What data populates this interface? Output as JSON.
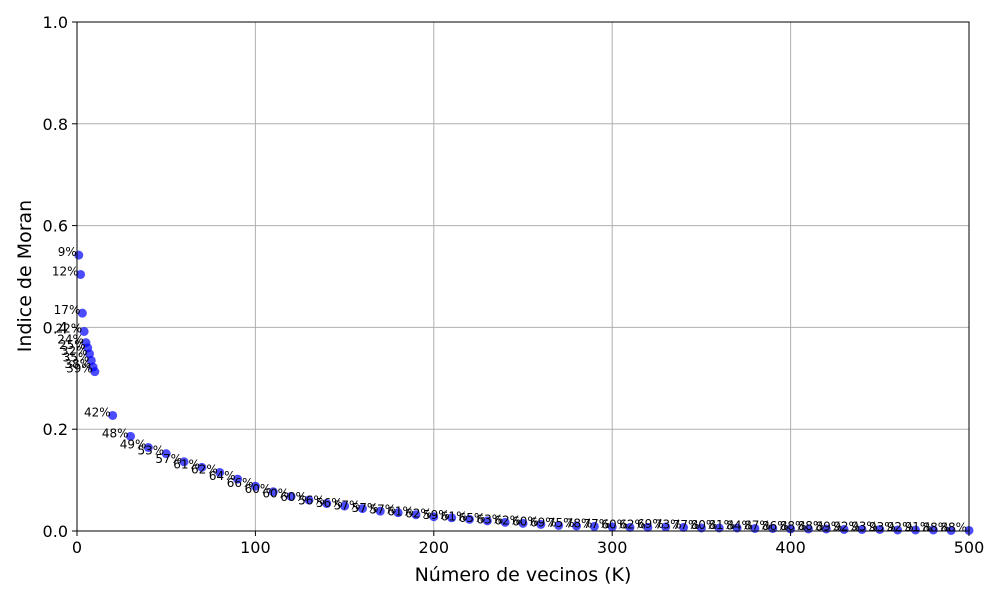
{
  "chart_data": {
    "type": "scatter",
    "xlabel": "Número de vecinos (K)",
    "ylabel": "Indice de Moran",
    "xlim": [
      0,
      500
    ],
    "ylim": [
      0,
      1
    ],
    "xticks": [
      0,
      100,
      200,
      300,
      400,
      500
    ],
    "yticks": [
      0.0,
      0.2,
      0.4,
      0.6,
      0.8,
      1.0
    ],
    "grid": true,
    "colors": {
      "point": "#0000ff"
    },
    "points": [
      {
        "x": 1,
        "y": 0.542,
        "label": "9%"
      },
      {
        "x": 2,
        "y": 0.504,
        "label": "12%"
      },
      {
        "x": 3,
        "y": 0.428,
        "label": "17%"
      },
      {
        "x": 4,
        "y": 0.392,
        "label": "22%"
      },
      {
        "x": 5,
        "y": 0.37,
        "label": "24%"
      },
      {
        "x": 6,
        "y": 0.36,
        "label": "25%"
      },
      {
        "x": 7,
        "y": 0.348,
        "label": "32%"
      },
      {
        "x": 8,
        "y": 0.335,
        "label": "35%"
      },
      {
        "x": 9,
        "y": 0.322,
        "label": "38%"
      },
      {
        "x": 10,
        "y": 0.313,
        "label": "39%"
      },
      {
        "x": 20,
        "y": 0.227,
        "label": "42%"
      },
      {
        "x": 30,
        "y": 0.186,
        "label": "48%"
      },
      {
        "x": 40,
        "y": 0.164,
        "label": "49%"
      },
      {
        "x": 50,
        "y": 0.152,
        "label": "53%"
      },
      {
        "x": 60,
        "y": 0.136,
        "label": "57%"
      },
      {
        "x": 70,
        "y": 0.125,
        "label": "61%"
      },
      {
        "x": 80,
        "y": 0.115,
        "label": "62%"
      },
      {
        "x": 90,
        "y": 0.102,
        "label": "64%"
      },
      {
        "x": 100,
        "y": 0.088,
        "label": "66%"
      },
      {
        "x": 110,
        "y": 0.077,
        "label": "60%"
      },
      {
        "x": 120,
        "y": 0.068,
        "label": "60%"
      },
      {
        "x": 130,
        "y": 0.061,
        "label": "60%"
      },
      {
        "x": 140,
        "y": 0.054,
        "label": "56%"
      },
      {
        "x": 150,
        "y": 0.049,
        "label": "56%"
      },
      {
        "x": 160,
        "y": 0.044,
        "label": "57%"
      },
      {
        "x": 170,
        "y": 0.039,
        "label": "57%"
      },
      {
        "x": 180,
        "y": 0.036,
        "label": "57%"
      },
      {
        "x": 190,
        "y": 0.032,
        "label": "61%"
      },
      {
        "x": 200,
        "y": 0.028,
        "label": "62%"
      },
      {
        "x": 210,
        "y": 0.026,
        "label": "59%"
      },
      {
        "x": 220,
        "y": 0.023,
        "label": "61%"
      },
      {
        "x": 230,
        "y": 0.02,
        "label": "65%"
      },
      {
        "x": 240,
        "y": 0.017,
        "label": "63%"
      },
      {
        "x": 250,
        "y": 0.015,
        "label": "62%"
      },
      {
        "x": 260,
        "y": 0.013,
        "label": "60%"
      },
      {
        "x": 270,
        "y": 0.011,
        "label": "69%"
      },
      {
        "x": 280,
        "y": 0.01,
        "label": "75%"
      },
      {
        "x": 290,
        "y": 0.009,
        "label": "78%"
      },
      {
        "x": 300,
        "y": 0.008,
        "label": "77%"
      },
      {
        "x": 310,
        "y": 0.007,
        "label": "60%"
      },
      {
        "x": 320,
        "y": 0.007,
        "label": "62%"
      },
      {
        "x": 330,
        "y": 0.008,
        "label": "69%"
      },
      {
        "x": 340,
        "y": 0.007,
        "label": "73%"
      },
      {
        "x": 350,
        "y": 0.006,
        "label": "77%"
      },
      {
        "x": 360,
        "y": 0.006,
        "label": "80%"
      },
      {
        "x": 370,
        "y": 0.006,
        "label": "81%"
      },
      {
        "x": 380,
        "y": 0.005,
        "label": "84%"
      },
      {
        "x": 390,
        "y": 0.005,
        "label": "87%"
      },
      {
        "x": 400,
        "y": 0.004,
        "label": "86%"
      },
      {
        "x": 410,
        "y": 0.004,
        "label": "88%"
      },
      {
        "x": 420,
        "y": 0.004,
        "label": "88%"
      },
      {
        "x": 430,
        "y": 0.003,
        "label": "89%"
      },
      {
        "x": 440,
        "y": 0.003,
        "label": "92%"
      },
      {
        "x": 450,
        "y": 0.003,
        "label": "93%"
      },
      {
        "x": 460,
        "y": 0.002,
        "label": "93%"
      },
      {
        "x": 470,
        "y": 0.002,
        "label": "92%"
      },
      {
        "x": 480,
        "y": 0.002,
        "label": "91%"
      },
      {
        "x": 490,
        "y": 0.001,
        "label": "88%"
      },
      {
        "x": 500,
        "y": 0.001,
        "label": "88%"
      }
    ]
  }
}
